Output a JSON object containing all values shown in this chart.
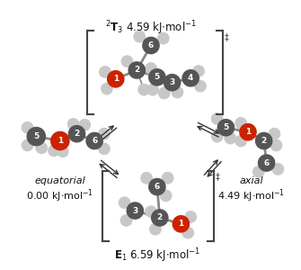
{
  "bg_color": "#ffffff",
  "dark_atom_color": "#555555",
  "red_atom_color": "#cc2200",
  "light_atom_color": "#c8c8c8",
  "bond_color": "#888888",
  "bracket_color": "#444444",
  "arrow_color": "#333333",
  "label_color": "#111111"
}
